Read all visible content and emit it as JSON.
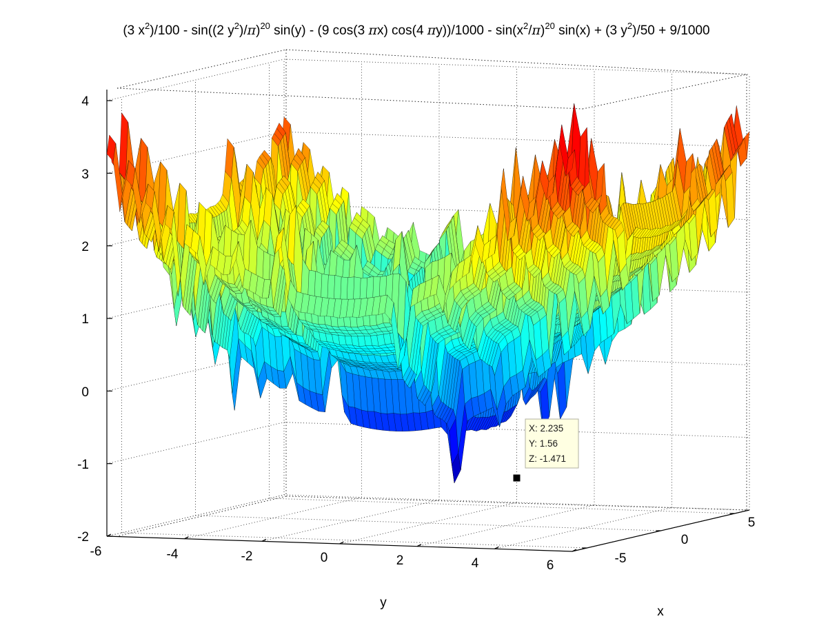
{
  "window": {
    "background": "#ffffff"
  },
  "chart_data": {
    "type": "surface",
    "title_parts": {
      "p1": "(3 x",
      "p1s": "2",
      "p2": ")/100 - sin((2 y",
      "p2s": "2",
      "p3": ")/",
      "pi1": "π",
      "p4": ")",
      "p4s": "20",
      "p5": " sin(y) - (9 cos(3 ",
      "pi2": "π",
      "p6": "x) cos(4 ",
      "pi3": "π",
      "p7": "y))/1000 - sin(x",
      "p7s": "2",
      "p8": "/",
      "pi4": "π",
      "p9": ")",
      "p9s": "20",
      "p10": " sin(x) + (3 y",
      "p10s": "2",
      "p11": ")/50 + 9/1000"
    },
    "formula": "(3 x^2)/100 - sin((2 y^2)/pi)^20 sin(y) - (9 cos(3 pi x) cos(4 pi y))/1000 - sin(x^2/pi)^20 sin(x) + (3 y^2)/50 + 9/1000",
    "x_range": [
      -6,
      6
    ],
    "y_range": [
      -6,
      6
    ],
    "xlabel": "x",
    "ylabel": "y",
    "zlim": [
      -2,
      4
    ],
    "y_ticks": [
      "-6",
      "-4",
      "-2",
      "0",
      "2",
      "4",
      "6"
    ],
    "x_ticks": [
      "-5",
      "0",
      "5"
    ],
    "z_ticks": [
      "-2",
      "-1",
      "0",
      "1",
      "2",
      "3",
      "4"
    ],
    "colormap": "jet",
    "grid": true,
    "datatip": {
      "x_line": "X: 2.235",
      "y_line": "Y: 1.56",
      "z_line": "Z: -1.471"
    },
    "datatip_point": {
      "x": 2.235,
      "y": 1.56,
      "z": -1.471
    }
  }
}
